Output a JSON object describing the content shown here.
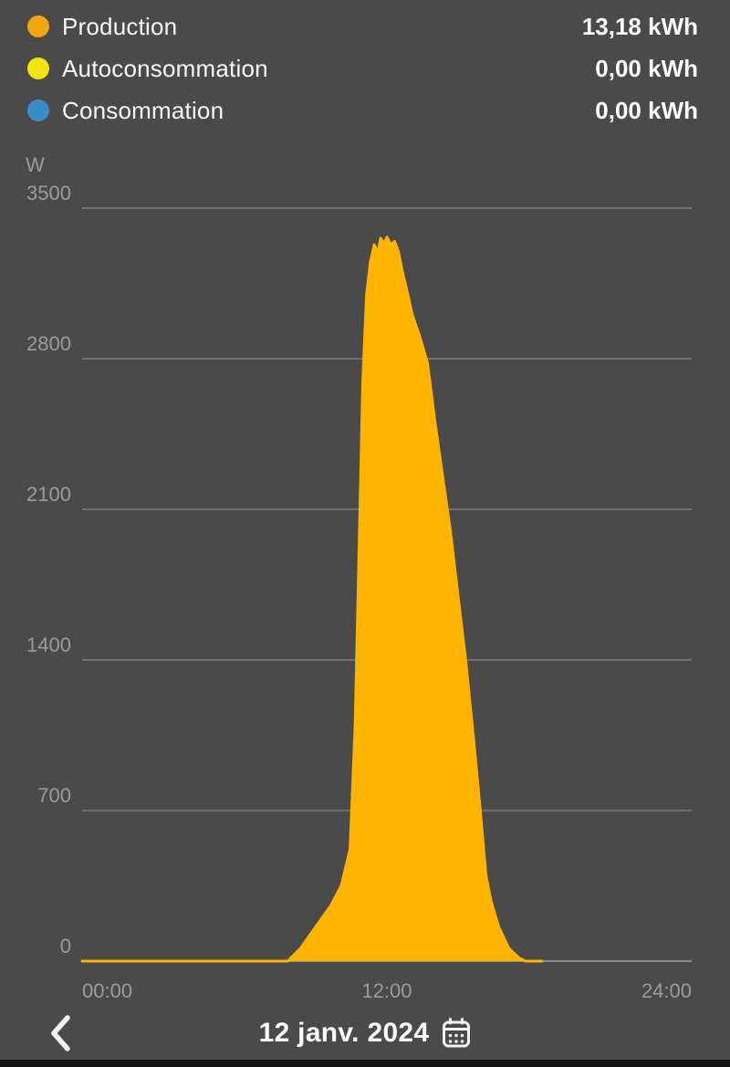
{
  "colors": {
    "background": "#4A4A4A",
    "production": "#F2A610",
    "autoconsommation": "#F4E313",
    "consommation": "#3A8EC8",
    "area_fill": "#FFB400",
    "axis_label": "#9B9B9B",
    "gridline": "#7D7D7D",
    "baseline": "#8C8C8C",
    "text": "#FFFFFF"
  },
  "legend": {
    "items": [
      {
        "id": "production",
        "label": "Production",
        "value": "13,18 kWh",
        "color": "#F2A610"
      },
      {
        "id": "autoconsommation",
        "label": "Autoconsommation",
        "value": "0,00 kWh",
        "color": "#F4E313"
      },
      {
        "id": "consommation",
        "label": "Consommation",
        "value": "0,00 kWh",
        "color": "#3A8EC8"
      }
    ]
  },
  "chart_data": {
    "type": "area",
    "title": "",
    "xlabel": "",
    "ylabel": "W",
    "unit": "W",
    "xlim": [
      0,
      24
    ],
    "ylim": [
      0,
      3500
    ],
    "yticks": [
      3500,
      2800,
      2100,
      1400,
      700,
      0
    ],
    "xticks": [
      {
        "t": 0,
        "label": "00:00",
        "anchor": "start"
      },
      {
        "t": 12,
        "label": "12:00",
        "anchor": "middle"
      },
      {
        "t": 24,
        "label": "24:00",
        "anchor": "end"
      }
    ],
    "grid": true,
    "legend_position": "top",
    "series": [
      {
        "name": "Production",
        "color": "#FFB400",
        "points": [
          [
            0.0,
            0
          ],
          [
            8.1,
            0
          ],
          [
            8.6,
            60
          ],
          [
            9.2,
            160
          ],
          [
            9.8,
            260
          ],
          [
            10.2,
            350
          ],
          [
            10.55,
            520
          ],
          [
            10.75,
            1100
          ],
          [
            10.9,
            1900
          ],
          [
            11.05,
            2700
          ],
          [
            11.2,
            3100
          ],
          [
            11.35,
            3250
          ],
          [
            11.5,
            3330
          ],
          [
            11.65,
            3290
          ],
          [
            11.75,
            3360
          ],
          [
            11.9,
            3335
          ],
          [
            12.0,
            3365
          ],
          [
            12.15,
            3330
          ],
          [
            12.3,
            3345
          ],
          [
            12.45,
            3300
          ],
          [
            12.6,
            3210
          ],
          [
            12.8,
            3110
          ],
          [
            13.0,
            3005
          ],
          [
            13.3,
            2900
          ],
          [
            13.6,
            2780
          ],
          [
            13.9,
            2500
          ],
          [
            14.2,
            2250
          ],
          [
            14.5,
            2000
          ],
          [
            14.8,
            1700
          ],
          [
            15.1,
            1400
          ],
          [
            15.4,
            1050
          ],
          [
            15.6,
            800
          ],
          [
            15.75,
            600
          ],
          [
            15.9,
            400
          ],
          [
            16.1,
            280
          ],
          [
            16.4,
            160
          ],
          [
            16.8,
            60
          ],
          [
            17.2,
            15
          ],
          [
            17.45,
            0
          ],
          [
            18.1,
            0
          ]
        ]
      }
    ]
  },
  "footer": {
    "date_label": "12 janv. 2024",
    "back_icon": "chevron-left-icon",
    "calendar_icon": "calendar-icon"
  }
}
